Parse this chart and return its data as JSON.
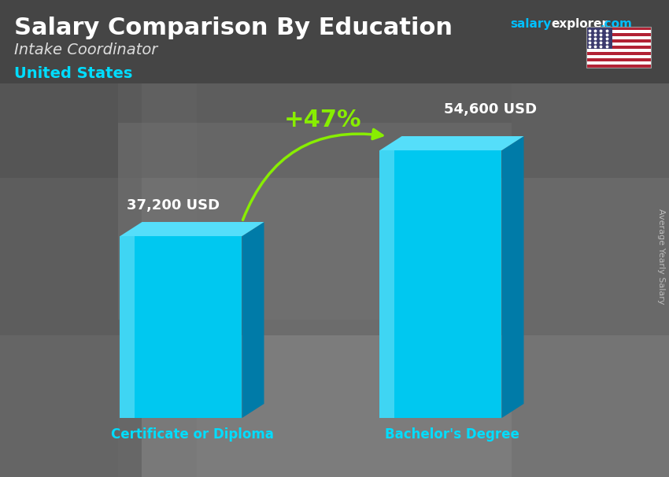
{
  "title": "Salary Comparison By Education",
  "subtitle_job": "Intake Coordinator",
  "subtitle_country": "United States",
  "ylabel": "Average Yearly Salary",
  "categories": [
    "Certificate or Diploma",
    "Bachelor's Degree"
  ],
  "values": [
    37200,
    54600
  ],
  "value_labels": [
    "37,200 USD",
    "54,600 USD"
  ],
  "pct_change": "+47%",
  "bar_color_front": "#00C8F0",
  "bar_color_top": "#55DEFA",
  "bar_color_right": "#007BA8",
  "bar_color_shine": "#AAEEFF",
  "arrow_color": "#88EE00",
  "pct_color": "#88EE00",
  "category_color": "#00DDFF",
  "title_color": "#FFFFFF",
  "subtitle_job_color": "#DDDDDD",
  "subtitle_country_color": "#00DDFF",
  "value_label_color": "#FFFFFF",
  "bg_top_color": "#5A5A5A",
  "bg_mid_color": "#888888",
  "bg_bottom_color": "#AAAAAA",
  "salary_color": "#00BFFF",
  "com_color": "#00BFFF",
  "explorer_color": "#FFFFFF",
  "ylabel_color": "#BBBBBB"
}
